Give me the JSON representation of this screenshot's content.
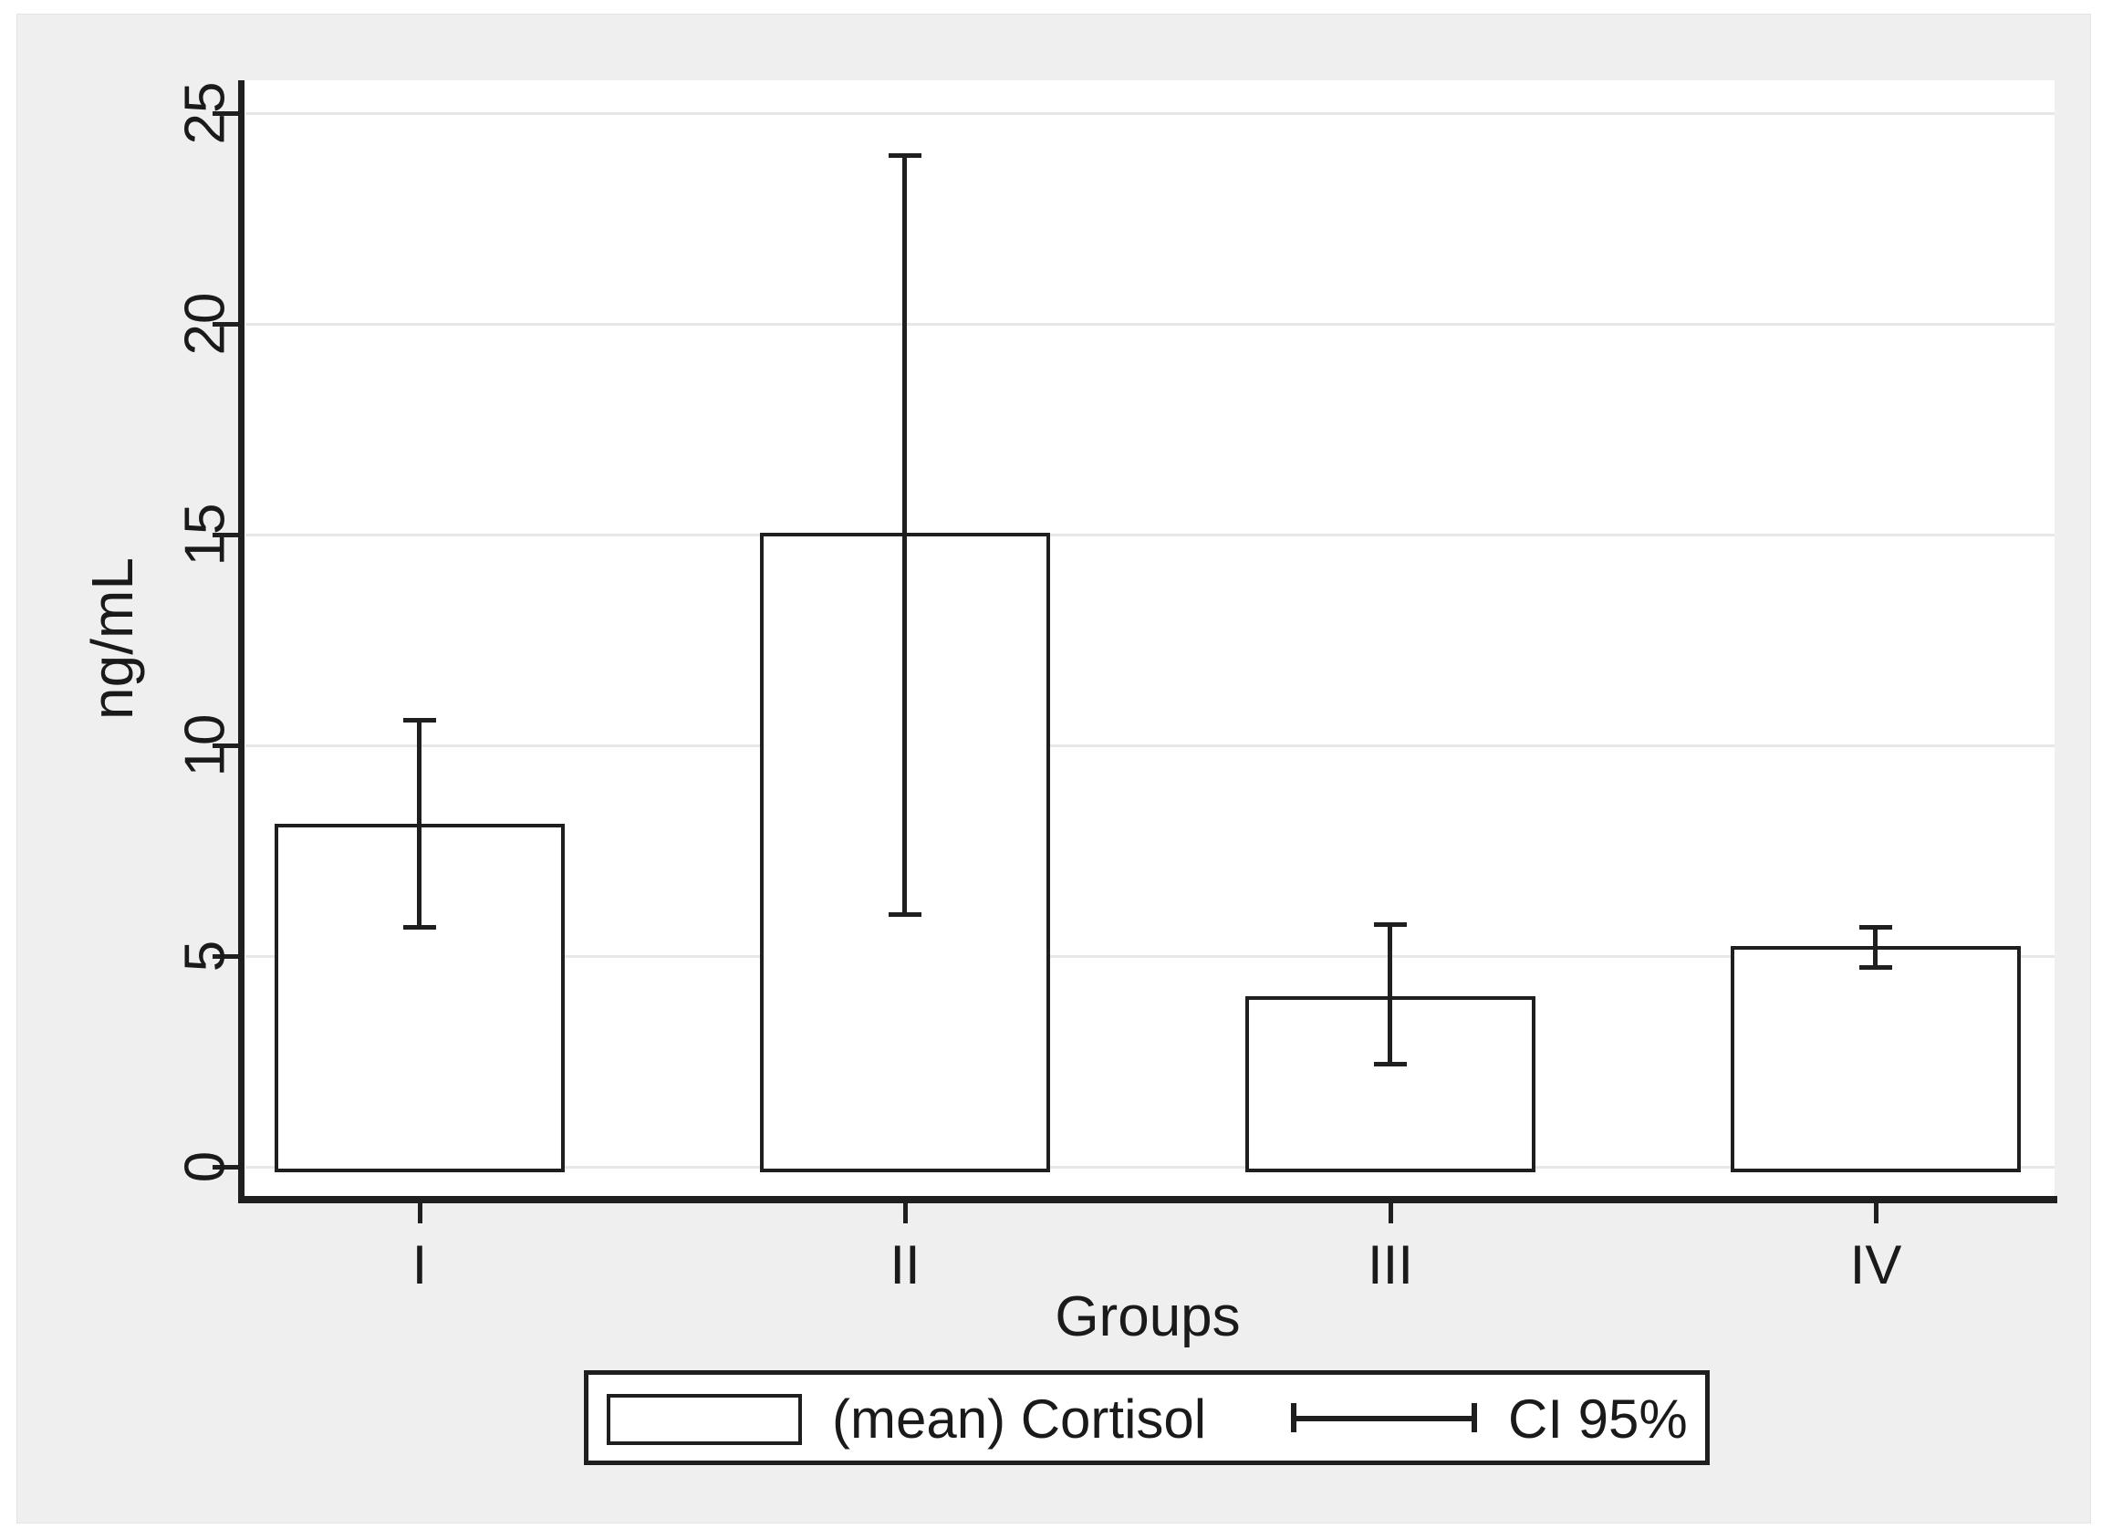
{
  "figure": {
    "background_color": "#efeff0",
    "plot_background_color": "#ffffff",
    "axis_color": "#1f1f1f",
    "gridline_color": "#e7e7e7",
    "text_color": "#1a1a1a"
  },
  "chart_data": {
    "type": "bar",
    "title": "",
    "categories": [
      "I",
      "II",
      "III",
      "IV"
    ],
    "series": [
      {
        "name": "(mean) Cortisol",
        "values": [
          8.1,
          15.0,
          4.0,
          5.2
        ]
      }
    ],
    "error_bars": {
      "name": "CI 95%",
      "low": [
        5.7,
        6.0,
        2.45,
        4.75
      ],
      "high": [
        10.6,
        24.0,
        5.75,
        5.7
      ]
    },
    "xlabel": "Groups",
    "ylabel": "ng/mL",
    "ylim": [
      0,
      25
    ],
    "yticks": [
      0,
      5,
      10,
      15,
      20,
      25
    ],
    "ytick_labels": [
      "0",
      "5",
      "10",
      "15",
      "20",
      "25"
    ],
    "grid": true,
    "bar_fill": "#ffffff",
    "bar_border": "#1f1f1f",
    "legend_position": "bottom-center"
  },
  "legend": {
    "items": [
      {
        "swatch": "bar",
        "label": "(mean) Cortisol"
      },
      {
        "swatch": "error-bar",
        "label": "CI 95%"
      }
    ]
  }
}
